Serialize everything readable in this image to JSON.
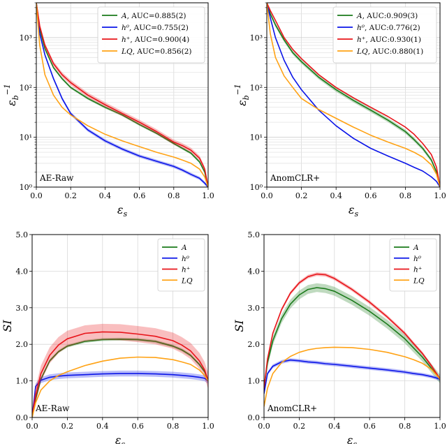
{
  "chart_data": [
    {
      "id": "roc-ae-raw",
      "type": "line",
      "tag": "AE-Raw",
      "xlabel": "ε_s",
      "ylabel": "ε_b⁻¹",
      "xlim": [
        0,
        1
      ],
      "ylim": [
        1,
        5000
      ],
      "yscale": "log",
      "grid": true,
      "legend_position": "top-right",
      "x_ticks": [
        "0.0",
        "0.2",
        "0.4",
        "0.6",
        "0.8",
        "1.0"
      ],
      "y_ticks": [
        "10⁰",
        "10¹",
        "10²",
        "10³"
      ],
      "x": [
        0.0,
        0.02,
        0.05,
        0.1,
        0.15,
        0.2,
        0.3,
        0.4,
        0.5,
        0.6,
        0.7,
        0.8,
        0.85,
        0.9,
        0.95,
        0.98,
        1.0
      ],
      "series": [
        {
          "name": "A",
          "legend": ", AUC=0.885(2)",
          "color": "#1a7a1a",
          "band": 0.06,
          "values": [
            5000,
            1500,
            600,
            250,
            150,
            100,
            60,
            40,
            28,
            18,
            12,
            7.5,
            6,
            4.8,
            3.2,
            2,
            1
          ]
        },
        {
          "name": "h⁰",
          "legend": ", AUC=0.755(2)",
          "color": "#0a14e8",
          "band": 0.08,
          "values": [
            5000,
            1200,
            450,
            150,
            60,
            30,
            14,
            8.5,
            5.8,
            4.2,
            3.3,
            2.6,
            2.2,
            1.8,
            1.5,
            1.2,
            1
          ]
        },
        {
          "name": "h⁺",
          "legend": ", AUC=0.900(4)",
          "color": "#e8141a",
          "band": 0.12,
          "values": [
            5000,
            1700,
            700,
            300,
            180,
            125,
            70,
            45,
            30,
            20,
            13,
            8,
            6.8,
            5.5,
            3.8,
            2.3,
            1
          ]
        },
        {
          "name": "LQ",
          "legend": ", AUC=0.856(2)",
          "color": "#ffa214",
          "band": 0,
          "values": [
            5000,
            700,
            180,
            70,
            40,
            28,
            17,
            11.5,
            8.5,
            6.5,
            5,
            4,
            3.5,
            3,
            2.3,
            1.6,
            1
          ]
        }
      ]
    },
    {
      "id": "roc-anomclr",
      "type": "line",
      "tag": "AnomCLR+",
      "xlabel": "ε_s",
      "ylabel": "ε_b⁻¹",
      "xlim": [
        0,
        1
      ],
      "ylim": [
        1,
        5000
      ],
      "yscale": "log",
      "grid": true,
      "legend_position": "top-right",
      "x_ticks": [
        "0.0",
        "0.2",
        "0.4",
        "0.6",
        "0.8",
        "1.0"
      ],
      "y_ticks": [
        "10⁰",
        "10¹",
        "10²",
        "10³"
      ],
      "x": [
        0.0,
        0.02,
        0.05,
        0.1,
        0.15,
        0.2,
        0.3,
        0.4,
        0.5,
        0.6,
        0.7,
        0.8,
        0.85,
        0.9,
        0.95,
        0.98,
        1.0
      ],
      "series": [
        {
          "name": "A",
          "legend": ", AUC:0.909(3)",
          "color": "#1a7a1a",
          "band": 0.1,
          "values": [
            5000,
            3000,
            1800,
            900,
            500,
            330,
            160,
            90,
            55,
            35,
            22,
            13,
            9,
            6,
            3.5,
            2,
            1
          ]
        },
        {
          "name": "h⁰",
          "legend": ", AUC:0.776(2)",
          "color": "#0a14e8",
          "band": 0,
          "values": [
            5000,
            2500,
            1000,
            350,
            160,
            90,
            35,
            17,
            9.5,
            6,
            4.2,
            3,
            2.5,
            2.1,
            1.6,
            1.3,
            1
          ]
        },
        {
          "name": "h⁺",
          "legend": ", AUC:0.930(1)",
          "color": "#e8141a",
          "band": 0,
          "values": [
            5000,
            3500,
            2200,
            1000,
            580,
            380,
            180,
            100,
            62,
            40,
            26,
            16,
            11.5,
            7.5,
            4.5,
            2.5,
            1
          ]
        },
        {
          "name": "LQ",
          "legend": ", AUC:0.880(1)",
          "color": "#ffa214",
          "band": 0,
          "values": [
            5000,
            1200,
            400,
            170,
            100,
            60,
            36,
            24,
            16,
            11,
            8,
            6,
            5,
            4,
            2.8,
            1.8,
            1
          ]
        }
      ]
    },
    {
      "id": "si-ae-raw",
      "type": "line",
      "tag": "AE-Raw",
      "xlabel": "ε_s",
      "ylabel": "SI",
      "xlim": [
        0,
        1
      ],
      "ylim": [
        0,
        5
      ],
      "yscale": "linear",
      "grid": true,
      "legend_position": "top-right",
      "x_ticks": [
        "0.0",
        "0.2",
        "0.4",
        "0.6",
        "0.8",
        "1.0"
      ],
      "y_ticks": [
        "0.0",
        "1.0",
        "2.0",
        "3.0",
        "4.0",
        "5.0"
      ],
      "x": [
        0.0,
        0.02,
        0.05,
        0.1,
        0.15,
        0.2,
        0.3,
        0.4,
        0.5,
        0.6,
        0.7,
        0.8,
        0.85,
        0.9,
        0.95,
        0.98,
        1.0
      ],
      "series": [
        {
          "name": "A",
          "color": "#1a7a1a",
          "band": 0.04,
          "values": [
            0.0,
            0.5,
            1.05,
            1.55,
            1.8,
            1.95,
            2.08,
            2.13,
            2.14,
            2.13,
            2.08,
            1.95,
            1.85,
            1.7,
            1.45,
            1.25,
            1.0
          ]
        },
        {
          "name": "h⁰",
          "color": "#0a14e8",
          "band": 0.08,
          "values": [
            0.0,
            0.85,
            1.02,
            1.1,
            1.13,
            1.15,
            1.17,
            1.19,
            1.2,
            1.2,
            1.19,
            1.17,
            1.15,
            1.13,
            1.1,
            1.07,
            1.0
          ]
        },
        {
          "name": "h⁺",
          "color": "#e8141a",
          "band": 0.22,
          "values": [
            0.0,
            0.6,
            1.2,
            1.7,
            1.98,
            2.15,
            2.3,
            2.34,
            2.33,
            2.28,
            2.22,
            2.1,
            1.98,
            1.82,
            1.55,
            1.3,
            1.0
          ]
        },
        {
          "name": "LQ",
          "color": "#ffa214",
          "band": 0,
          "values": [
            0.0,
            0.4,
            0.75,
            1.0,
            1.15,
            1.25,
            1.42,
            1.54,
            1.62,
            1.65,
            1.64,
            1.58,
            1.52,
            1.45,
            1.3,
            1.15,
            1.0
          ]
        }
      ]
    },
    {
      "id": "si-anomclr",
      "type": "line",
      "tag": "AnomCLR+",
      "xlabel": "ε_s",
      "ylabel": "SI",
      "xlim": [
        0,
        1
      ],
      "ylim": [
        0,
        5
      ],
      "yscale": "linear",
      "grid": true,
      "legend_position": "top-right",
      "x_ticks": [
        "0.0",
        "0.2",
        "0.4",
        "0.6",
        "0.8",
        "1.0"
      ],
      "y_ticks": [
        "0.0",
        "1.0",
        "2.0",
        "3.0",
        "4.0",
        "5.0"
      ],
      "x": [
        0.0,
        0.02,
        0.05,
        0.1,
        0.15,
        0.2,
        0.25,
        0.3,
        0.35,
        0.4,
        0.5,
        0.6,
        0.7,
        0.8,
        0.85,
        0.9,
        0.95,
        1.0
      ],
      "series": [
        {
          "name": "A",
          "color": "#1a7a1a",
          "band": 0.12,
          "values": [
            0.8,
            1.5,
            2.1,
            2.7,
            3.1,
            3.35,
            3.5,
            3.55,
            3.52,
            3.45,
            3.2,
            2.9,
            2.55,
            2.15,
            1.9,
            1.65,
            1.35,
            1.05
          ]
        },
        {
          "name": "h⁰",
          "color": "#0a14e8",
          "band": 0.05,
          "values": [
            0.65,
            1.2,
            1.4,
            1.52,
            1.57,
            1.55,
            1.52,
            1.5,
            1.47,
            1.45,
            1.4,
            1.35,
            1.3,
            1.24,
            1.2,
            1.17,
            1.12,
            1.05
          ]
        },
        {
          "name": "h⁺",
          "color": "#e8141a",
          "band": 0.05,
          "values": [
            0.8,
            1.6,
            2.3,
            2.95,
            3.4,
            3.68,
            3.85,
            3.92,
            3.9,
            3.8,
            3.5,
            3.15,
            2.75,
            2.3,
            2.02,
            1.75,
            1.42,
            1.05
          ]
        },
        {
          "name": "LQ",
          "color": "#ffa214",
          "band": 0,
          "values": [
            0.3,
            0.8,
            1.2,
            1.5,
            1.67,
            1.78,
            1.85,
            1.89,
            1.91,
            1.92,
            1.91,
            1.86,
            1.78,
            1.66,
            1.58,
            1.48,
            1.32,
            1.05
          ]
        }
      ]
    }
  ]
}
